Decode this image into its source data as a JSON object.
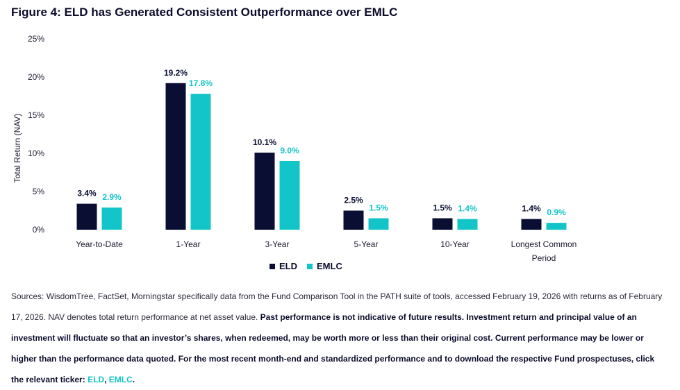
{
  "title": "Figure 4: ELD has Generated Consistent Outperformance over EMLC",
  "colors": {
    "eld": "#0a0e33",
    "emlc": "#13c4c8",
    "text": "#1a1a2e"
  },
  "chart_data": {
    "type": "bar",
    "ylabel": "Total Return (NAV)",
    "ylim": [
      0,
      25
    ],
    "yticks": [
      0,
      5,
      10,
      15,
      20,
      25
    ],
    "ytick_labels": [
      "0%",
      "5%",
      "10%",
      "15%",
      "20%",
      "25%"
    ],
    "categories": [
      [
        "Year-to-Date"
      ],
      [
        "1-Year"
      ],
      [
        "3-Year"
      ],
      [
        "5-Year"
      ],
      [
        "10-Year"
      ],
      [
        "Longest Common",
        "Period"
      ]
    ],
    "series": [
      {
        "name": "ELD",
        "values": [
          3.4,
          19.2,
          10.1,
          2.5,
          1.5,
          1.4
        ],
        "labels": [
          "3.4%",
          "19.2%",
          "10.1%",
          "2.5%",
          "1.5%",
          "1.4%"
        ]
      },
      {
        "name": "EMLC",
        "values": [
          2.9,
          17.8,
          9.0,
          1.5,
          1.4,
          0.9
        ],
        "labels": [
          "2.9%",
          "17.8%",
          "9.0%",
          "1.5%",
          "1.4%",
          "0.9%"
        ]
      }
    ],
    "legend": "bottom",
    "grid": false
  },
  "notes": {
    "sources": "Sources: WisdomTree, FactSet, Morningstar specifically data from the Fund Comparison Tool in the PATH suite of tools, accessed February 19, 2026 with returns as of February 17, 2026. NAV denotes total return performance at net asset value.",
    "disclaimer": "Past performance is not indicative of future results. Investment return and principal value of an investment will fluctuate so that an investor’s shares, when redeemed, may be worth more or less than their original cost. Current performance may be lower or higher than the performance data quoted. For the most recent month-end and standardized performance and to download the respective Fund prospectuses, click the relevant ticker:",
    "link_eld": "ELD",
    "separator": ",",
    "link_emlc": "EMLC",
    "end": "."
  }
}
